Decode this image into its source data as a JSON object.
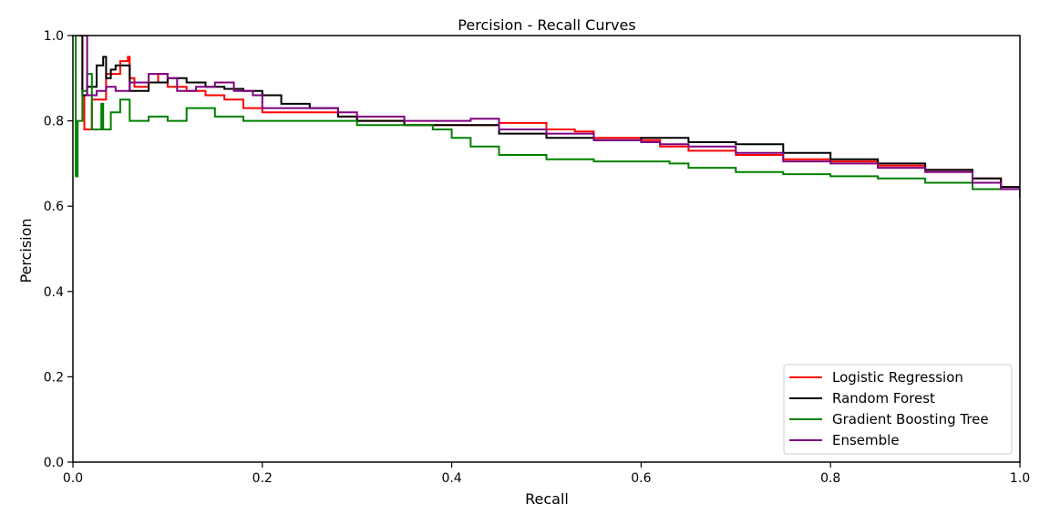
{
  "chart_data": {
    "type": "line",
    "title": "Percision - Recall Curves",
    "xlabel": "Recall",
    "ylabel": "Percision",
    "xlim": [
      0,
      1
    ],
    "ylim": [
      0,
      1
    ],
    "xticks": [
      "0.0",
      "0.2",
      "0.4",
      "0.6",
      "0.8",
      "1.0"
    ],
    "yticks": [
      "0.0",
      "0.2",
      "0.4",
      "0.6",
      "0.8",
      "1.0"
    ],
    "grid": false,
    "legend_position": "lower-right",
    "series": [
      {
        "name": "Logistic Regression",
        "color": "#ff0000",
        "points": [
          [
            0.005,
            1.0
          ],
          [
            0.01,
            0.86
          ],
          [
            0.012,
            0.78
          ],
          [
            0.02,
            0.85
          ],
          [
            0.035,
            0.91
          ],
          [
            0.05,
            0.94
          ],
          [
            0.058,
            0.95
          ],
          [
            0.06,
            0.9
          ],
          [
            0.065,
            0.88
          ],
          [
            0.08,
            0.89
          ],
          [
            0.09,
            0.91
          ],
          [
            0.1,
            0.88
          ],
          [
            0.12,
            0.87
          ],
          [
            0.14,
            0.86
          ],
          [
            0.16,
            0.85
          ],
          [
            0.18,
            0.83
          ],
          [
            0.2,
            0.82
          ],
          [
            0.24,
            0.82
          ],
          [
            0.28,
            0.81
          ],
          [
            0.3,
            0.8
          ],
          [
            0.35,
            0.79
          ],
          [
            0.4,
            0.79
          ],
          [
            0.45,
            0.795
          ],
          [
            0.5,
            0.78
          ],
          [
            0.53,
            0.775
          ],
          [
            0.55,
            0.76
          ],
          [
            0.6,
            0.755
          ],
          [
            0.62,
            0.74
          ],
          [
            0.65,
            0.73
          ],
          [
            0.7,
            0.72
          ],
          [
            0.75,
            0.71
          ],
          [
            0.8,
            0.705
          ],
          [
            0.85,
            0.695
          ],
          [
            0.9,
            0.685
          ],
          [
            0.95,
            0.665
          ],
          [
            0.98,
            0.64
          ],
          [
            1.0,
            0.62
          ]
        ]
      },
      {
        "name": "Random Forest",
        "color": "#000000",
        "points": [
          [
            0.007,
            1.0
          ],
          [
            0.01,
            0.86
          ],
          [
            0.015,
            0.88
          ],
          [
            0.025,
            0.93
          ],
          [
            0.032,
            0.95
          ],
          [
            0.035,
            0.9
          ],
          [
            0.04,
            0.92
          ],
          [
            0.045,
            0.93
          ],
          [
            0.06,
            0.87
          ],
          [
            0.08,
            0.89
          ],
          [
            0.1,
            0.9
          ],
          [
            0.12,
            0.89
          ],
          [
            0.14,
            0.88
          ],
          [
            0.16,
            0.875
          ],
          [
            0.18,
            0.87
          ],
          [
            0.2,
            0.86
          ],
          [
            0.22,
            0.84
          ],
          [
            0.25,
            0.83
          ],
          [
            0.28,
            0.81
          ],
          [
            0.3,
            0.8
          ],
          [
            0.35,
            0.79
          ],
          [
            0.4,
            0.79
          ],
          [
            0.45,
            0.77
          ],
          [
            0.5,
            0.76
          ],
          [
            0.55,
            0.755
          ],
          [
            0.6,
            0.76
          ],
          [
            0.65,
            0.75
          ],
          [
            0.7,
            0.745
          ],
          [
            0.75,
            0.725
          ],
          [
            0.8,
            0.71
          ],
          [
            0.85,
            0.7
          ],
          [
            0.9,
            0.685
          ],
          [
            0.95,
            0.665
          ],
          [
            0.98,
            0.645
          ],
          [
            1.0,
            0.62
          ]
        ]
      },
      {
        "name": "Gradient Boosting Tree",
        "color": "#008000",
        "points": [
          [
            0.002,
            1.0
          ],
          [
            0.003,
            0.67
          ],
          [
            0.005,
            0.8
          ],
          [
            0.01,
            0.87
          ],
          [
            0.015,
            0.91
          ],
          [
            0.02,
            0.78
          ],
          [
            0.03,
            0.84
          ],
          [
            0.032,
            0.78
          ],
          [
            0.04,
            0.82
          ],
          [
            0.05,
            0.85
          ],
          [
            0.06,
            0.8
          ],
          [
            0.08,
            0.81
          ],
          [
            0.1,
            0.8
          ],
          [
            0.12,
            0.83
          ],
          [
            0.15,
            0.81
          ],
          [
            0.18,
            0.8
          ],
          [
            0.2,
            0.8
          ],
          [
            0.25,
            0.8
          ],
          [
            0.3,
            0.79
          ],
          [
            0.35,
            0.79
          ],
          [
            0.38,
            0.78
          ],
          [
            0.4,
            0.76
          ],
          [
            0.42,
            0.74
          ],
          [
            0.45,
            0.72
          ],
          [
            0.5,
            0.71
          ],
          [
            0.55,
            0.705
          ],
          [
            0.6,
            0.705
          ],
          [
            0.63,
            0.7
          ],
          [
            0.65,
            0.69
          ],
          [
            0.7,
            0.68
          ],
          [
            0.75,
            0.675
          ],
          [
            0.8,
            0.67
          ],
          [
            0.85,
            0.665
          ],
          [
            0.9,
            0.655
          ],
          [
            0.95,
            0.64
          ],
          [
            1.0,
            0.62
          ]
        ]
      },
      {
        "name": "Ensemble",
        "color": "#800080",
        "points": [
          [
            0.012,
            1.0
          ],
          [
            0.015,
            0.86
          ],
          [
            0.025,
            0.87
          ],
          [
            0.035,
            0.88
          ],
          [
            0.045,
            0.87
          ],
          [
            0.06,
            0.89
          ],
          [
            0.08,
            0.91
          ],
          [
            0.1,
            0.9
          ],
          [
            0.11,
            0.87
          ],
          [
            0.13,
            0.88
          ],
          [
            0.15,
            0.89
          ],
          [
            0.17,
            0.87
          ],
          [
            0.19,
            0.86
          ],
          [
            0.2,
            0.83
          ],
          [
            0.22,
            0.83
          ],
          [
            0.25,
            0.83
          ],
          [
            0.28,
            0.82
          ],
          [
            0.3,
            0.81
          ],
          [
            0.35,
            0.8
          ],
          [
            0.4,
            0.8
          ],
          [
            0.42,
            0.805
          ],
          [
            0.45,
            0.78
          ],
          [
            0.5,
            0.77
          ],
          [
            0.55,
            0.755
          ],
          [
            0.6,
            0.75
          ],
          [
            0.62,
            0.745
          ],
          [
            0.65,
            0.74
          ],
          [
            0.7,
            0.725
          ],
          [
            0.75,
            0.705
          ],
          [
            0.8,
            0.7
          ],
          [
            0.85,
            0.69
          ],
          [
            0.9,
            0.68
          ],
          [
            0.95,
            0.655
          ],
          [
            0.98,
            0.64
          ],
          [
            1.0,
            0.62
          ]
        ]
      }
    ]
  }
}
